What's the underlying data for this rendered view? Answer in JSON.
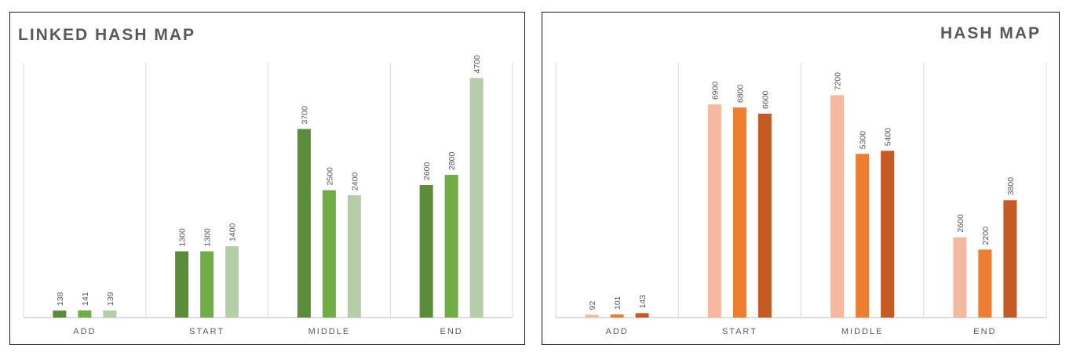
{
  "chart_data": [
    {
      "type": "bar",
      "title": "LINKED HASH MAP",
      "categories": [
        "ADD",
        "START",
        "MIDDLE",
        "END"
      ],
      "series": [
        {
          "values": [
            138,
            1300,
            3700,
            2600
          ],
          "color": "#5b8c3a"
        },
        {
          "values": [
            141,
            1300,
            2500,
            2800
          ],
          "color": "#70ad47"
        },
        {
          "values": [
            139,
            1400,
            2400,
            4700
          ],
          "color": "#b5cea8"
        }
      ],
      "ylim": [
        0,
        5000
      ],
      "grid": false,
      "legend": "none"
    },
    {
      "type": "bar",
      "title": "HASH MAP",
      "categories": [
        "ADD",
        "START",
        "MIDDLE",
        "END"
      ],
      "series": [
        {
          "values": [
            92,
            6900,
            7200,
            2600
          ],
          "color": "#f4b9a0"
        },
        {
          "values": [
            101,
            6800,
            5300,
            2200
          ],
          "color": "#ed7d31"
        },
        {
          "values": [
            143,
            6600,
            5400,
            3800
          ],
          "color": "#c55a24"
        }
      ],
      "ylim": [
        0,
        8250
      ],
      "grid": false,
      "legend": "none"
    }
  ]
}
